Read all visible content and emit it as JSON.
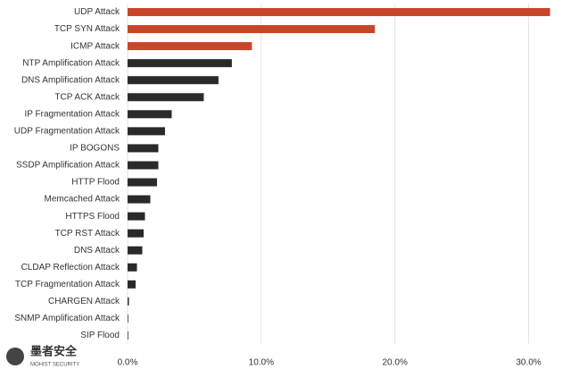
{
  "chart_data": {
    "type": "hbar",
    "categories": [
      "UDP Attack",
      "TCP SYN Attack",
      "ICMP Attack",
      "NTP Amplification Attack",
      "DNS Amplification Attack",
      "TCP ACK Attack",
      "IP Fragmentation Attack",
      "UDP Fragmentation Attack",
      "IP BOGONS",
      "SSDP Amplification Attack",
      "HTTP Flood",
      "Memcached Attack",
      "HTTPS Flood",
      "TCP RST Attack",
      "DNS Attack",
      "CLDAP Reflection Attack",
      "TCP Fragmentation Attack",
      "CHARGEN Attack",
      "SNMP Amplification Attack",
      "SIP Flood"
    ],
    "values": [
      31.6,
      18.5,
      9.3,
      7.8,
      6.8,
      5.7,
      3.3,
      2.8,
      2.3,
      2.3,
      2.2,
      1.7,
      1.3,
      1.2,
      1.1,
      0.7,
      0.6,
      0.1,
      0.05,
      0.05
    ],
    "colors": [
      "#c8452a",
      "#c8452a",
      "#c8452a",
      "#2a2a2a",
      "#2a2a2a",
      "#2a2a2a",
      "#2a2a2a",
      "#2a2a2a",
      "#2a2a2a",
      "#2a2a2a",
      "#2a2a2a",
      "#2a2a2a",
      "#2a2a2a",
      "#2a2a2a",
      "#2a2a2a",
      "#2a2a2a",
      "#2a2a2a",
      "#2a2a2a",
      "#2a2a2a",
      "#2a2a2a"
    ],
    "xlim": [
      0,
      32.5
    ],
    "xticks": [
      {
        "value": 0,
        "label": "0.0%"
      },
      {
        "value": 10,
        "label": "10.0%"
      },
      {
        "value": 20,
        "label": "20.0%"
      },
      {
        "value": 30,
        "label": "30.0%"
      }
    ],
    "grid": true,
    "watermark": {
      "title": "墨者安全",
      "subtitle": "MOHIST SECURITY"
    }
  }
}
